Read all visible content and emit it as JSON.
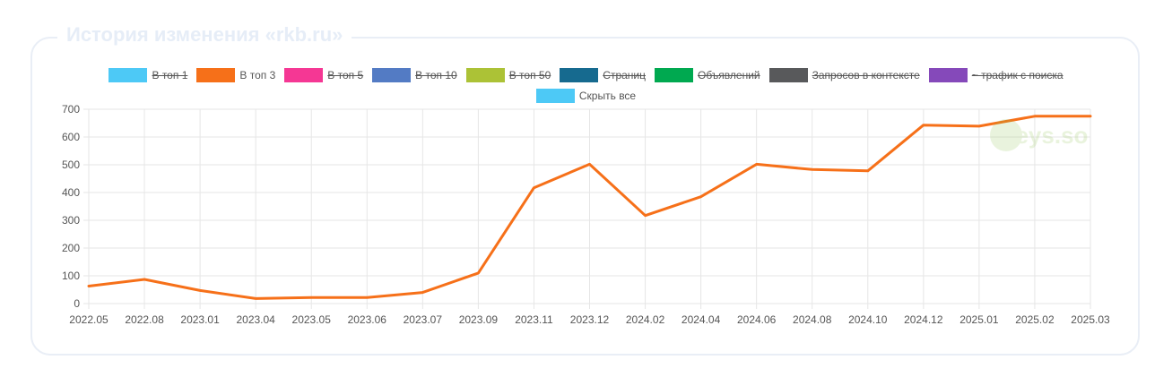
{
  "title": "История изменения «rkb.ru»",
  "watermark": "keys.so",
  "legend": [
    {
      "label": "В топ 1",
      "color": "#4dc9f6",
      "hidden": true
    },
    {
      "label": "В топ 3",
      "color": "#f67019",
      "hidden": false
    },
    {
      "label": "В топ 5",
      "color": "#f53794",
      "hidden": true
    },
    {
      "label": "В топ 10",
      "color": "#537bc4",
      "hidden": true
    },
    {
      "label": "В топ 50",
      "color": "#acc236",
      "hidden": true
    },
    {
      "label": "Страниц",
      "color": "#166a8f",
      "hidden": true
    },
    {
      "label": "Объявлений",
      "color": "#00a950",
      "hidden": true
    },
    {
      "label": "Запросов в контексте",
      "color": "#58595b",
      "hidden": true
    },
    {
      "label": "~ трафик с поиска",
      "color": "#8549ba",
      "hidden": true
    },
    {
      "label": "Скрыть все",
      "color": "#4dc9f6",
      "hidden": false
    }
  ],
  "chart_data": {
    "type": "line",
    "title": "",
    "xlabel": "",
    "ylabel": "",
    "categories": [
      "2022.05",
      "2022.08",
      "2023.01",
      "2023.04",
      "2023.05",
      "2023.06",
      "2023.07",
      "2023.09",
      "2023.11",
      "2023.12",
      "2024.02",
      "2024.04",
      "2024.06",
      "2024.08",
      "2024.10",
      "2024.12",
      "2025.01",
      "2025.02",
      "2025.03"
    ],
    "ylim": [
      0,
      700
    ],
    "yticks": [
      0,
      100,
      200,
      300,
      400,
      500,
      600,
      700
    ],
    "grid": true,
    "legend_position": "top",
    "series": [
      {
        "name": "В топ 3",
        "color": "#f67019",
        "values": [
          63,
          87,
          47,
          18,
          22,
          22,
          40,
          110,
          417,
          502,
          317,
          385,
          502,
          483,
          478,
          643,
          639,
          675,
          675
        ]
      }
    ]
  }
}
